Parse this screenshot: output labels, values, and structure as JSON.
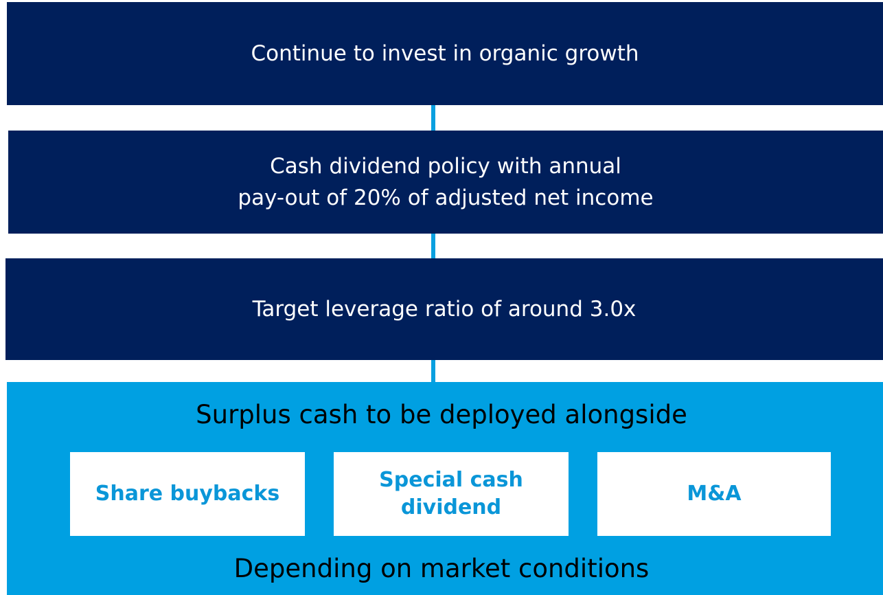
{
  "steps": [
    {
      "lines": [
        "Continue to invest in organic growth"
      ]
    },
    {
      "lines": [
        "Cash dividend policy with annual",
        "pay-out of 20% of adjusted net income"
      ]
    },
    {
      "lines": [
        "Target leverage ratio of around 3.0x"
      ]
    }
  ],
  "surplus": {
    "title": "Surplus cash to be deployed alongside",
    "options": [
      {
        "lines": [
          "Share buybacks"
        ]
      },
      {
        "lines": [
          "Special cash",
          "dividend"
        ]
      },
      {
        "lines": [
          "M&A"
        ]
      }
    ],
    "footer": "Depending on market conditions"
  }
}
